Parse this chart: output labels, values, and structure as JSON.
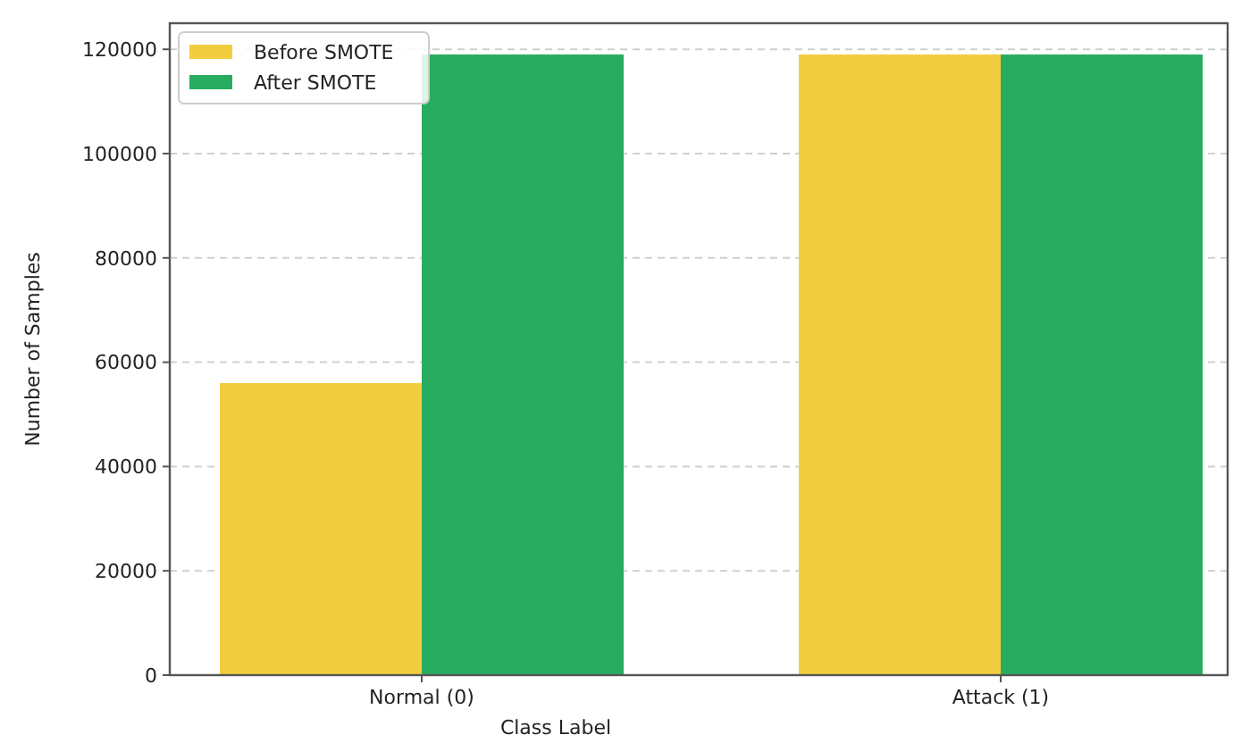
{
  "chart_data": {
    "type": "bar",
    "xlabel": "Class Label",
    "ylabel": "Number of Samples",
    "categories": [
      "Normal (0)",
      "Attack (1)"
    ],
    "series": [
      {
        "name": "Before SMOTE",
        "color": "#f2ce3e",
        "values": [
          56000,
          119000
        ]
      },
      {
        "name": "After SMOTE",
        "color": "#28ac5f",
        "values": [
          119000,
          119000
        ]
      }
    ],
    "ylim": [
      0,
      125000
    ],
    "yticks": [
      0,
      20000,
      40000,
      60000,
      80000,
      100000,
      120000
    ],
    "grid": "y",
    "legend": "top left"
  }
}
